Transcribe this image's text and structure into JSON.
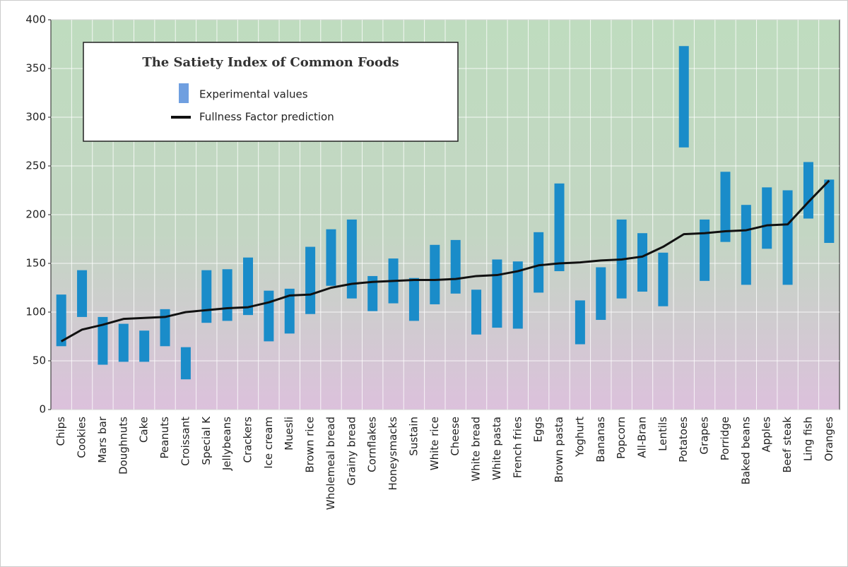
{
  "chart_data": {
    "type": "bar",
    "categories": [
      "Chips",
      "Cookies",
      "Mars bar",
      "Doughnuts",
      "Cake",
      "Peanuts",
      "Croissant",
      "Special K",
      "Jellybeans",
      "Crackers",
      "Ice cream",
      "Muesli",
      "Brown rice",
      "Wholemeal bread",
      "Grainy bread",
      "Cornflakes",
      "Honeysmacks",
      "Sustain",
      "White rice",
      "Cheese",
      "White bread",
      "White pasta",
      "French fries",
      "Eggs",
      "Brown pasta",
      "Yoghurt",
      "Bananas",
      "Popcorn",
      "All-Bran",
      "Lentils",
      "Potatoes",
      "Grapes",
      "Porridge",
      "Baked beans",
      "Apples",
      "Beef steak",
      "Ling fish",
      "Oranges"
    ],
    "legend": {
      "title": "The Satiety Index of Common Foods"
    },
    "series": [
      {
        "name": "Experimental values",
        "type": "bar",
        "color": "#1a8cc9",
        "legend_color": "#6f9fe0",
        "low": [
          65,
          95,
          46,
          49,
          49,
          65,
          31,
          89,
          91,
          97,
          70,
          78,
          98,
          127,
          114,
          101,
          109,
          91,
          108,
          119,
          77,
          84,
          83,
          120,
          142,
          67,
          92,
          114,
          121,
          106,
          269,
          132,
          172,
          128,
          165,
          128,
          196,
          171
        ],
        "high": [
          118,
          143,
          95,
          88,
          81,
          103,
          64,
          143,
          144,
          156,
          122,
          124,
          167,
          185,
          195,
          137,
          155,
          135,
          169,
          174,
          123,
          154,
          152,
          182,
          232,
          112,
          146,
          195,
          181,
          161,
          373,
          195,
          244,
          210,
          228,
          225,
          254,
          236
        ]
      },
      {
        "name": "Fullness Factor prediction",
        "type": "line",
        "color": "#111111",
        "values": [
          70,
          82,
          87,
          93,
          94,
          95,
          100,
          102,
          104,
          105,
          110,
          117,
          118,
          125,
          129,
          131,
          132,
          133,
          133,
          134,
          137,
          138,
          142,
          148,
          150,
          151,
          153,
          154,
          157,
          167,
          180,
          181,
          183,
          184,
          189,
          190,
          213,
          235
        ]
      }
    ],
    "ylim": [
      0,
      400
    ],
    "yticks": [
      0,
      50,
      100,
      150,
      200,
      250,
      300,
      350,
      400
    ],
    "grid": true
  }
}
